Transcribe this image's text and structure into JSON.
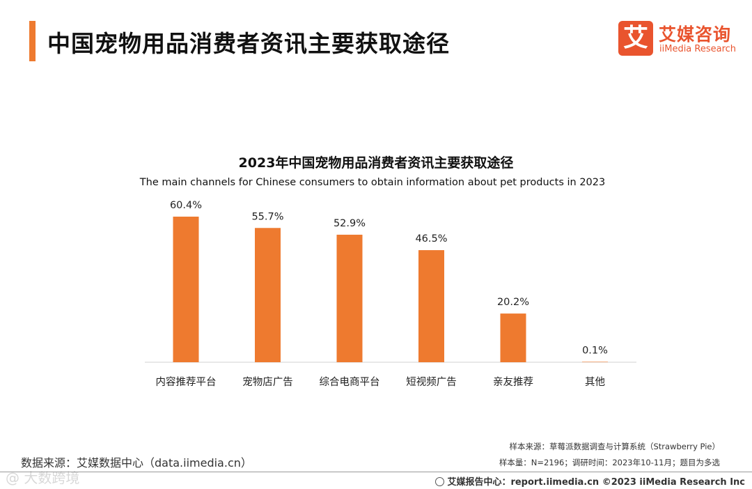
{
  "header": {
    "title": "中国宠物用品消费者资讯主要获取途径",
    "logo_mark": "艾",
    "logo_cn": "艾媒咨询",
    "logo_en": "iiMedia Research"
  },
  "chart_data": {
    "type": "bar",
    "title": "2023年中国宠物用品消费者资讯主要获取途径",
    "subtitle": "The main channels for Chinese consumers to obtain information about pet products in 2023",
    "categories": [
      "内容推荐平台",
      "宠物店广告",
      "综合电商平台",
      "短视频广告",
      "亲友推荐",
      "其他"
    ],
    "values": [
      60.4,
      55.7,
      52.9,
      46.5,
      20.2,
      0.1
    ],
    "labels": [
      "60.4%",
      "55.7%",
      "52.9%",
      "46.5%",
      "20.2%",
      "0.1%"
    ],
    "unit": "%",
    "ylim": [
      0,
      60.4
    ],
    "color": "#ee7a2f",
    "xlabel": "",
    "ylabel": ""
  },
  "source": {
    "left": "数据来源：艾媒数据中心（data.iimedia.cn）",
    "sample_source": "样本来源：草莓派数据调查与计算系统（Strawberry Pie）",
    "sample_size": "样本量：N=2196；调研时间：2023年10-11月；题目为多选"
  },
  "footer": {
    "text": "艾媒报告中心：report.iimedia.cn   ©2023  iiMedia Research  Inc"
  },
  "watermark": "@ 大数跨境"
}
